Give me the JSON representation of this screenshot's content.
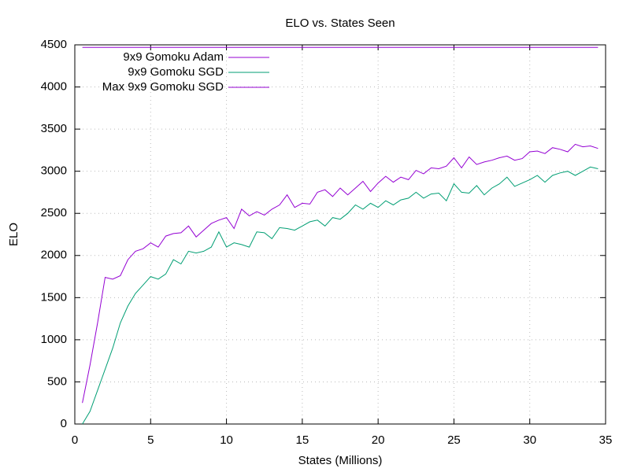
{
  "chart_data": {
    "type": "line",
    "title": "ELO vs. States Seen",
    "x_label": "States (Millions)",
    "y_label": "ELO",
    "x": [
      0.5,
      1,
      1.5,
      2,
      2.5,
      3,
      3.5,
      4,
      4.5,
      5,
      5.5,
      6,
      6.5,
      7,
      7.5,
      8,
      8.5,
      9,
      9.5,
      10,
      10.5,
      11,
      11.5,
      12,
      12.5,
      13,
      13.5,
      14,
      14.5,
      15,
      15.5,
      16,
      16.5,
      17,
      17.5,
      18,
      18.5,
      19,
      19.5,
      20,
      20.5,
      21,
      21.5,
      22,
      22.5,
      23,
      23.5,
      24,
      24.5,
      25,
      25.5,
      26,
      26.5,
      27,
      27.5,
      28,
      28.5,
      29,
      29.5,
      30,
      30.5,
      31,
      31.5,
      32,
      32.5,
      33,
      33.5,
      34,
      34.5
    ],
    "series": [
      {
        "name": "9x9 Gomoku Adam",
        "color": "#9400d3",
        "values": [
          4470,
          4470,
          4470,
          4470,
          4470,
          4470,
          4470,
          4470,
          4470,
          4470,
          4470,
          4470,
          4470,
          4470,
          4470,
          4470,
          4470,
          4470,
          4470,
          4470,
          4470,
          4470,
          4470,
          4470,
          4470,
          4470,
          4470,
          4470,
          4470,
          4470,
          4470,
          4470,
          4470,
          4470,
          4470,
          4470,
          4470,
          4470,
          4470,
          4470,
          4470,
          4470,
          4470,
          4470,
          4470,
          4470,
          4470,
          4470,
          4470,
          4470,
          4470,
          4470,
          4470,
          4470,
          4470,
          4470,
          4470,
          4470,
          4470,
          4470,
          4470,
          4470,
          4470,
          4470,
          4470,
          4470,
          4470,
          4470,
          4470
        ]
      },
      {
        "name": "9x9 Gomoku SGD",
        "color": "#009e73",
        "values": [
          0,
          150,
          400,
          650,
          900,
          1200,
          1400,
          1550,
          1650,
          1750,
          1720,
          1780,
          1950,
          1900,
          2050,
          2030,
          2050,
          2100,
          2280,
          2100,
          2150,
          2130,
          2100,
          2280,
          2270,
          2200,
          2330,
          2320,
          2300,
          2350,
          2400,
          2420,
          2350,
          2450,
          2430,
          2500,
          2600,
          2550,
          2620,
          2570,
          2650,
          2600,
          2660,
          2680,
          2750,
          2680,
          2730,
          2740,
          2650,
          2850,
          2750,
          2740,
          2830,
          2720,
          2800,
          2850,
          2930,
          2820,
          2860,
          2900,
          2950,
          2870,
          2950,
          2980,
          3000,
          2950,
          3000,
          3050,
          3030
        ]
      },
      {
        "name": "Max 9x9 Gomoku SGD",
        "color": "#9400d3",
        "values": [
          250,
          700,
          1200,
          1740,
          1720,
          1760,
          1950,
          2050,
          2080,
          2150,
          2100,
          2230,
          2260,
          2270,
          2350,
          2220,
          2300,
          2380,
          2420,
          2450,
          2320,
          2550,
          2470,
          2520,
          2480,
          2550,
          2600,
          2720,
          2570,
          2620,
          2610,
          2750,
          2780,
          2700,
          2800,
          2720,
          2800,
          2880,
          2760,
          2860,
          2940,
          2870,
          2930,
          2900,
          3010,
          2970,
          3040,
          3030,
          3060,
          3160,
          3040,
          3170,
          3080,
          3110,
          3130,
          3160,
          3180,
          3130,
          3150,
          3230,
          3240,
          3210,
          3280,
          3260,
          3230,
          3320,
          3290,
          3300,
          3270
        ]
      }
    ],
    "xlim": [
      0,
      35
    ],
    "xticks": [
      0,
      5,
      10,
      15,
      20,
      25,
      30,
      35
    ],
    "ylim": [
      0,
      4500
    ],
    "yticks": [
      0,
      500,
      1000,
      1500,
      2000,
      2500,
      3000,
      3500,
      4000,
      4500
    ],
    "grid": true,
    "legend": "top-left"
  }
}
